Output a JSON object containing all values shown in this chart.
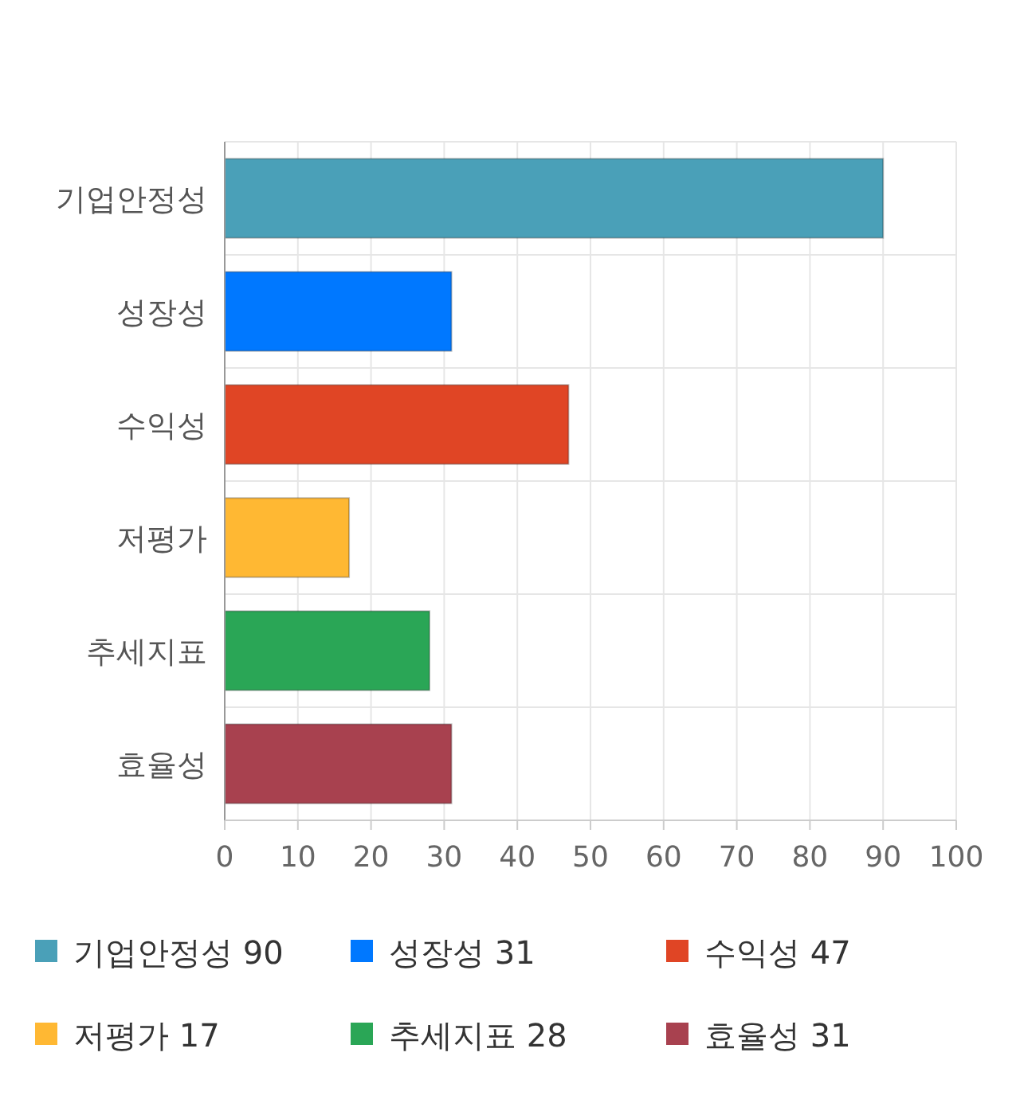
{
  "chart_data": {
    "type": "bar",
    "orientation": "horizontal",
    "categories": [
      "기업안정성",
      "성장성",
      "수익성",
      "저평가",
      "추세지표",
      "효율성"
    ],
    "values": [
      90,
      31,
      47,
      17,
      28,
      31
    ],
    "colors": [
      "#4aa0b8",
      "#0078ff",
      "#e04525",
      "#ffb833",
      "#2aa656",
      "#a8414f"
    ],
    "xlim": [
      0,
      100
    ],
    "xticks": [
      0,
      10,
      20,
      30,
      40,
      50,
      60,
      70,
      80,
      90,
      100
    ],
    "grid": true,
    "annotations": [
      "기업안정성 90",
      "성장성 31",
      "수익성 47",
      "저평가 17",
      "추세지표 28",
      "효율성 31"
    ]
  }
}
